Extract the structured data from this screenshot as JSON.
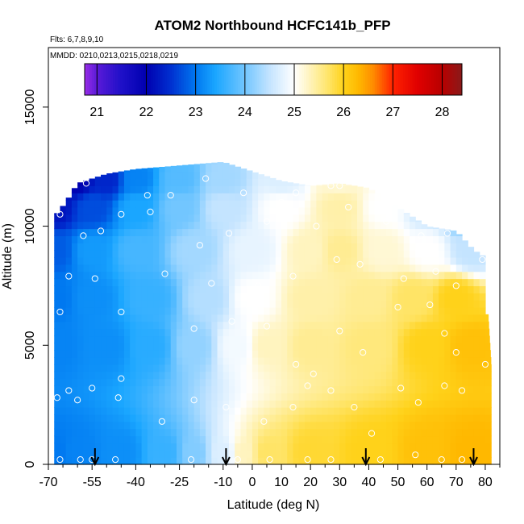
{
  "title": "ATOM2 Northbound HCFC141b_PFP",
  "flights_note": "Flts: 6,7,8,9,10",
  "dates_note": "MMDD: 0210,0213,0215,0218,0219",
  "chart_data": {
    "type": "heatmap",
    "title": "ATOM2 Northbound HCFC141b_PFP",
    "xlabel": "Latitude (deg N)",
    "ylabel": "Altitude (m)",
    "xlim": [
      -70,
      85
    ],
    "ylim": [
      0,
      17500
    ],
    "x_ticks": [
      -70,
      -55,
      -40,
      -25,
      -10,
      0,
      10,
      20,
      30,
      40,
      50,
      60,
      70,
      80
    ],
    "x_minor_ticks": [
      -65,
      -60,
      -50,
      -45,
      -35,
      -30,
      -20,
      -15,
      -5,
      5,
      15,
      25,
      35,
      45,
      55,
      65,
      75,
      85
    ],
    "y_ticks": [
      0,
      5000,
      10000,
      15000
    ],
    "colorbar": {
      "range": [
        20.75,
        28.4
      ],
      "ticks": [
        21,
        22,
        23,
        24,
        25,
        26,
        27,
        28
      ],
      "stops": [
        {
          "v": 20.75,
          "color": "#9a2ee8"
        },
        {
          "v": 21.0,
          "color": "#5a1ad8"
        },
        {
          "v": 21.5,
          "color": "#1e10c8"
        },
        {
          "v": 22.0,
          "color": "#0000b0"
        },
        {
          "v": 22.5,
          "color": "#0030d0"
        },
        {
          "v": 23.0,
          "color": "#0078f0"
        },
        {
          "v": 23.4,
          "color": "#1aa6ff"
        },
        {
          "v": 24.0,
          "color": "#72c6ff"
        },
        {
          "v": 24.5,
          "color": "#c4e4ff"
        },
        {
          "v": 25.0,
          "color": "#ffffff"
        },
        {
          "v": 25.35,
          "color": "#fff2b4"
        },
        {
          "v": 25.7,
          "color": "#ffe466"
        },
        {
          "v": 26.0,
          "color": "#ffd21a"
        },
        {
          "v": 26.3,
          "color": "#ffb800"
        },
        {
          "v": 26.6,
          "color": "#ff8c00"
        },
        {
          "v": 27.0,
          "color": "#ff2200"
        },
        {
          "v": 27.5,
          "color": "#e00000"
        },
        {
          "v": 28.0,
          "color": "#b80000"
        },
        {
          "v": 28.4,
          "color": "#8a1a1a"
        }
      ]
    },
    "data_extent_top_altitude": [
      [
        -68,
        10400
      ],
      [
        -64,
        11000
      ],
      [
        -60,
        11800
      ],
      [
        -50,
        12200
      ],
      [
        -40,
        12400
      ],
      [
        -30,
        12500
      ],
      [
        -20,
        12600
      ],
      [
        -10,
        12700
      ],
      [
        0,
        12300
      ],
      [
        10,
        11900
      ],
      [
        20,
        11700
      ],
      [
        30,
        11800
      ],
      [
        40,
        11600
      ],
      [
        50,
        10800
      ],
      [
        60,
        10000
      ],
      [
        70,
        9800
      ],
      [
        76,
        9000
      ],
      [
        80,
        8700
      ]
    ],
    "data_extent_right_edge": [
      [
        0,
        82
      ],
      [
        2000,
        82
      ],
      [
        4000,
        82
      ],
      [
        6000,
        81
      ],
      [
        7500,
        80
      ],
      [
        8500,
        80
      ],
      [
        8700,
        80
      ]
    ],
    "data_extent_left_lat": -68,
    "field_anchors": [
      {
        "lat": -68,
        "alt": 500,
        "v": 23.0
      },
      {
        "lat": -60,
        "alt": 500,
        "v": 23.1
      },
      {
        "lat": -45,
        "alt": 500,
        "v": 23.2
      },
      {
        "lat": -30,
        "alt": 500,
        "v": 23.6
      },
      {
        "lat": -20,
        "alt": 500,
        "v": 24.1
      },
      {
        "lat": -10,
        "alt": 500,
        "v": 24.7
      },
      {
        "lat": -3,
        "alt": 500,
        "v": 25.3
      },
      {
        "lat": 5,
        "alt": 500,
        "v": 25.7
      },
      {
        "lat": 20,
        "alt": 500,
        "v": 25.9
      },
      {
        "lat": 40,
        "alt": 500,
        "v": 26.0
      },
      {
        "lat": 60,
        "alt": 500,
        "v": 26.2
      },
      {
        "lat": 75,
        "alt": 500,
        "v": 26.3
      },
      {
        "lat": -68,
        "alt": 5000,
        "v": 23.1
      },
      {
        "lat": -50,
        "alt": 5000,
        "v": 23.2
      },
      {
        "lat": -35,
        "alt": 5000,
        "v": 23.5
      },
      {
        "lat": -20,
        "alt": 5000,
        "v": 24.2
      },
      {
        "lat": -5,
        "alt": 5000,
        "v": 24.9
      },
      {
        "lat": 5,
        "alt": 5000,
        "v": 25.3
      },
      {
        "lat": 20,
        "alt": 5000,
        "v": 25.5
      },
      {
        "lat": 40,
        "alt": 5000,
        "v": 25.6
      },
      {
        "lat": 60,
        "alt": 5000,
        "v": 26.0
      },
      {
        "lat": 75,
        "alt": 5000,
        "v": 26.2
      },
      {
        "lat": -68,
        "alt": 7000,
        "v": 23.0
      },
      {
        "lat": -55,
        "alt": 7000,
        "v": 23.2
      },
      {
        "lat": -35,
        "alt": 7000,
        "v": 23.6
      },
      {
        "lat": -15,
        "alt": 7000,
        "v": 24.4
      },
      {
        "lat": 0,
        "alt": 7000,
        "v": 25.0
      },
      {
        "lat": 20,
        "alt": 7000,
        "v": 25.4
      },
      {
        "lat": 40,
        "alt": 7000,
        "v": 25.5
      },
      {
        "lat": 55,
        "alt": 7000,
        "v": 25.7
      },
      {
        "lat": 70,
        "alt": 7000,
        "v": 26.0
      },
      {
        "lat": -68,
        "alt": 9000,
        "v": 22.8
      },
      {
        "lat": -55,
        "alt": 9000,
        "v": 23.3
      },
      {
        "lat": -40,
        "alt": 9000,
        "v": 23.7
      },
      {
        "lat": -20,
        "alt": 9000,
        "v": 24.3
      },
      {
        "lat": 0,
        "alt": 9000,
        "v": 24.8
      },
      {
        "lat": 20,
        "alt": 9000,
        "v": 25.3
      },
      {
        "lat": 30,
        "alt": 9000,
        "v": 25.5
      },
      {
        "lat": 45,
        "alt": 9000,
        "v": 25.2
      },
      {
        "lat": 60,
        "alt": 9000,
        "v": 25.0
      },
      {
        "lat": 75,
        "alt": 9000,
        "v": 24.5
      },
      {
        "lat": -68,
        "alt": 10800,
        "v": 22.2
      },
      {
        "lat": -55,
        "alt": 10800,
        "v": 22.7
      },
      {
        "lat": -40,
        "alt": 10800,
        "v": 23.4
      },
      {
        "lat": -25,
        "alt": 10800,
        "v": 24.0
      },
      {
        "lat": -10,
        "alt": 10800,
        "v": 24.5
      },
      {
        "lat": 10,
        "alt": 10800,
        "v": 25.0
      },
      {
        "lat": 30,
        "alt": 10800,
        "v": 25.4
      },
      {
        "lat": 45,
        "alt": 10800,
        "v": 25.0
      },
      {
        "lat": 60,
        "alt": 10800,
        "v": 24.6
      },
      {
        "lat": 72,
        "alt": 10800,
        "v": 23.5
      },
      {
        "lat": -60,
        "alt": 12000,
        "v": 22.0
      },
      {
        "lat": -50,
        "alt": 12000,
        "v": 22.4
      },
      {
        "lat": -40,
        "alt": 12000,
        "v": 23.1
      },
      {
        "lat": -25,
        "alt": 12000,
        "v": 23.8
      },
      {
        "lat": -10,
        "alt": 12000,
        "v": 24.3
      },
      {
        "lat": 10,
        "alt": 12000,
        "v": 24.7
      },
      {
        "lat": 30,
        "alt": 12000,
        "v": 25.2
      }
    ],
    "samples": [
      [
        -66,
        200
      ],
      [
        -59,
        200
      ],
      [
        -55,
        200
      ],
      [
        -47,
        200
      ],
      [
        -21,
        200
      ],
      [
        -5,
        200
      ],
      [
        6,
        200
      ],
      [
        19,
        200
      ],
      [
        27,
        200
      ],
      [
        44,
        200
      ],
      [
        56,
        400
      ],
      [
        65,
        200
      ],
      [
        72,
        200
      ],
      [
        -67,
        2800
      ],
      [
        -63,
        3100
      ],
      [
        -60,
        2700
      ],
      [
        -55,
        3200
      ],
      [
        -46,
        2800
      ],
      [
        -45,
        3600
      ],
      [
        -31,
        1800
      ],
      [
        -20,
        2700
      ],
      [
        -9,
        2400
      ],
      [
        4,
        1800
      ],
      [
        14,
        2400
      ],
      [
        21,
        3800
      ],
      [
        27,
        3100
      ],
      [
        35,
        2400
      ],
      [
        41,
        1300
      ],
      [
        51,
        3200
      ],
      [
        57,
        2600
      ],
      [
        66,
        3300
      ],
      [
        72,
        3100
      ],
      [
        -66,
        6400
      ],
      [
        -45,
        6400
      ],
      [
        -20,
        5700
      ],
      [
        -7,
        6000
      ],
      [
        5,
        5800
      ],
      [
        15,
        4200
      ],
      [
        19,
        3300
      ],
      [
        30,
        5600
      ],
      [
        38,
        4700
      ],
      [
        50,
        6600
      ],
      [
        61,
        6700
      ],
      [
        66,
        5500
      ],
      [
        70,
        4700
      ],
      [
        80,
        4200
      ],
      [
        -63,
        7900
      ],
      [
        -54,
        7800
      ],
      [
        -30,
        8000
      ],
      [
        -14,
        7600
      ],
      [
        2,
        7500
      ],
      [
        14,
        7900
      ],
      [
        29,
        8600
      ],
      [
        37,
        8400
      ],
      [
        52,
        7800
      ],
      [
        63,
        8100
      ],
      [
        70,
        7500
      ],
      [
        79,
        8600
      ],
      [
        -66,
        10500
      ],
      [
        -58,
        9600
      ],
      [
        -52,
        9800
      ],
      [
        -45,
        10500
      ],
      [
        -35,
        10600
      ],
      [
        -18,
        9200
      ],
      [
        -8,
        9700
      ],
      [
        5,
        10200
      ],
      [
        10,
        11000
      ],
      [
        22,
        10000
      ],
      [
        33,
        10800
      ],
      [
        46,
        10200
      ],
      [
        58,
        9600
      ],
      [
        67,
        9700
      ],
      [
        76,
        9400
      ],
      [
        -57,
        11800
      ],
      [
        -36,
        11300
      ],
      [
        -28,
        11300
      ],
      [
        -16,
        12000
      ],
      [
        -3,
        11400
      ],
      [
        15,
        11400
      ],
      [
        27,
        11700
      ],
      [
        30,
        11700
      ]
    ],
    "arrows_latitude": [
      -54,
      -9,
      39,
      76
    ],
    "colorbar_orientation": "horizontal-top",
    "grid": false
  }
}
